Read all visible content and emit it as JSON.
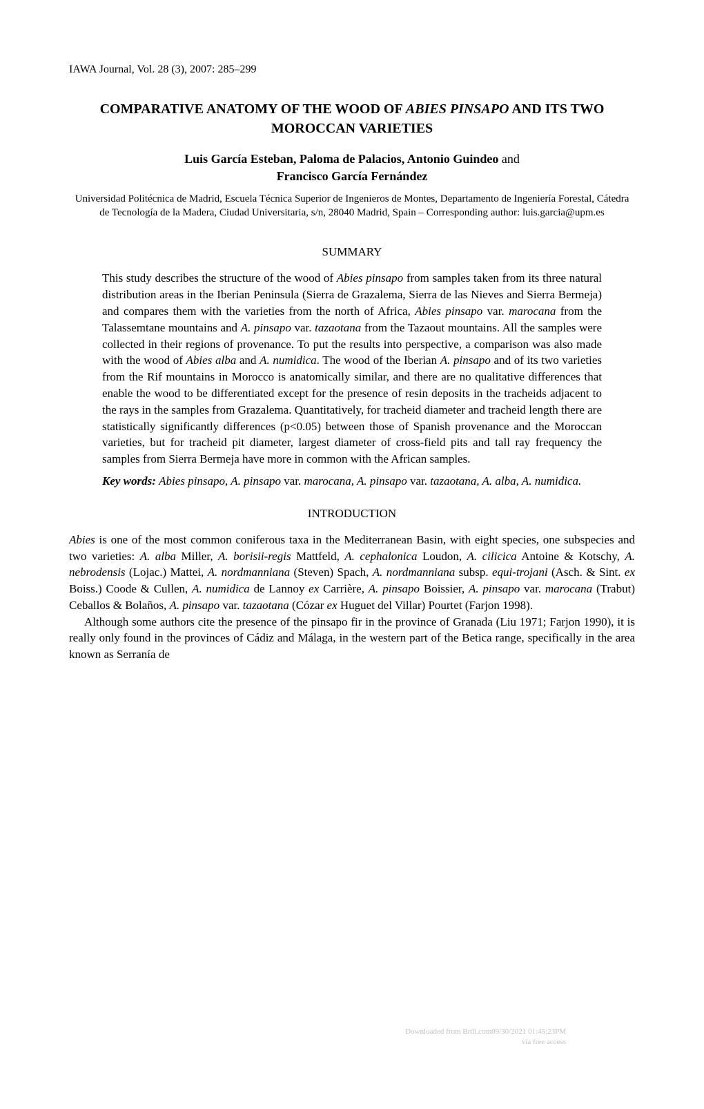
{
  "journal_header": "IAWA Journal, Vol. 28 (3), 2007: 285–299",
  "title_line1": "COMPARATIVE ANATOMY OF THE WOOD OF ",
  "title_italic": "ABIES PINSAPO",
  "title_line2": " AND ITS TWO MOROCCAN VARIETIES",
  "authors_line1": "Luis García Esteban, Paloma de Palacios, Antonio Guindeo ",
  "authors_and": "and",
  "authors_line2": "Francisco García Fernández",
  "affiliation": "Universidad Politécnica de Madrid, Escuela Técnica Superior de Ingenieros de Montes, Departamento de Ingeniería Forestal, Cátedra de Tecnología de la Madera, Ciudad Universitaria, s/n, 28040 Madrid, Spain – Corresponding author: luis.garcia@upm.es",
  "summary_heading": "SUMMARY",
  "summary": {
    "t1": "This study describes the structure of the wood of ",
    "i1": "Abies pinsapo",
    "t2": " from samples taken from its three natural distribution areas in the Iberian Peninsula (Sierra de Grazalema, Sierra de las Nieves and Sierra Bermeja) and compares them with the varieties from the north of Africa, ",
    "i2": "Abies pinsapo",
    "t3": " var. ",
    "i3": "marocana",
    "t4": " from the Talassemtane mountains and ",
    "i4": "A. pinsapo",
    "t5": " var. ",
    "i5": "tazaotana",
    "t6": " from the Tazaout mountains. All the samples were collected in their regions of provenance. To put the results into perspective, a comparison was also made with the wood of ",
    "i6": "Abies alba",
    "t7": " and ",
    "i7": "A. numidica",
    "t8": ". The wood of the Iberian ",
    "i8": "A. pinsapo",
    "t9": " and of its two varieties from the Rif mountains in Morocco is anatomically similar, and there are no qualitative differences that enable the wood to be differentiated except for the presence of resin deposits in the tracheids adjacent to the rays in the samples from Grazalema. Quantitatively, for tracheid diameter and tracheid length there are statistically significantly differences (p<0.05) between those of Spanish provenance and the Moroccan varieties, but for tracheid pit diameter, largest diameter of cross-field pits and tall ray frequency the samples from Sierra Bermeja have more in common with the African samples."
  },
  "keywords_label": "Key words:",
  "keywords": {
    "t1": " ",
    "i1": "Abies pinsapo, A. pinsapo ",
    "t2": "var. ",
    "i2": "marocana, A. pinsapo ",
    "t3": "var. ",
    "i3": "tazaotana, A. alba, A. numidica."
  },
  "intro_heading": "INTRODUCTION",
  "intro_p1": {
    "i1": "Abies",
    "t1": " is one of the most common coniferous taxa in the Mediterranean Basin, with eight species, one subspecies and two varieties: ",
    "i2": "A. alba",
    "t2": " Miller, ",
    "i3": "A. borisii-regis",
    "t3": " Mattfeld, ",
    "i4": "A. cephalonica",
    "t4": " Loudon, ",
    "i5": "A. cilicica",
    "t5": " Antoine & Kotschy, ",
    "i6": "A. nebrodensis",
    "t6": " (Lojac.) Mattei, ",
    "i7": "A. nordmanniana",
    "t7": " (Steven) Spach, ",
    "i8": "A. nordmanniana",
    "t8": " subsp. ",
    "i9": "equi-trojani",
    "t9": " (Asch. & Sint. ",
    "i10": "ex",
    "t10": " Boiss.) Coode & Cullen, ",
    "i11": "A. numidica",
    "t11": " de Lannoy ",
    "i12": "ex",
    "t12": " Carrière, ",
    "i13": "A. pinsapo",
    "t13": " Boissier, ",
    "i14": "A. pinsapo",
    "t14": " var. ",
    "i15": "marocana",
    "t15": " (Trabut) Ceballos & Bolaños, ",
    "i16": "A. pinsapo",
    "t16": " var. ",
    "i17": "tazaotana",
    "t17": " (Cózar ",
    "i18": "ex",
    "t18": " Huguet del Villar) Pourtet (Farjon 1998)."
  },
  "intro_p2": "Although some authors cite the presence of the pinsapo fir in the province of Granada (Liu 1971; Farjon 1990), it is really only found in the provinces of Cádiz and Málaga, in the western part of the Betica range, specifically in the area known as Serranía de",
  "watermark_line1": "Downloaded from Brill.com09/30/2021 01:45:23PM",
  "watermark_line2": "via free access"
}
